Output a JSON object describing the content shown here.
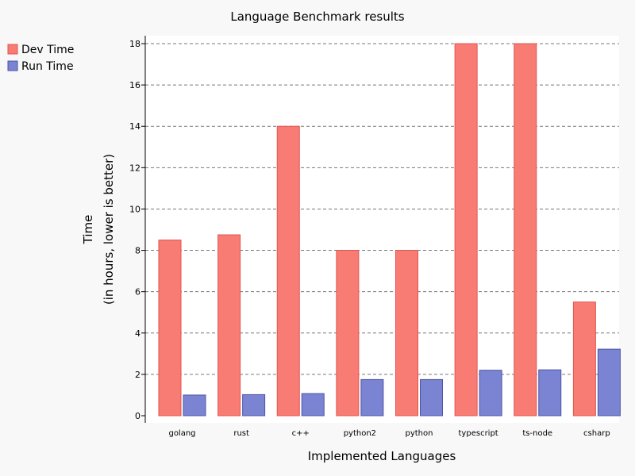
{
  "chart_data": {
    "type": "bar",
    "title": "Language Benchmark results",
    "xlabel": "Implemented Languages",
    "ylabel": [
      "Time",
      "(in hours, lower is better)"
    ],
    "categories": [
      "golang",
      "rust",
      "c++",
      "python2",
      "python",
      "typescript",
      "ts-node",
      "csharp"
    ],
    "series": [
      {
        "name": "Dev Time",
        "color": "#f87c73",
        "stroke": "#e05550",
        "values": [
          8.5,
          8.75,
          14.0,
          8.0,
          8.0,
          18.0,
          18.0,
          5.5
        ]
      },
      {
        "name": "Run Time",
        "color": "#7a84d2",
        "stroke": "#4d55a3",
        "values": [
          1.0,
          1.02,
          1.07,
          1.75,
          1.75,
          2.2,
          2.22,
          3.22
        ]
      }
    ],
    "ylim": [
      0,
      18
    ],
    "yticks": [
      "0",
      "2",
      "4",
      "6",
      "8",
      "10",
      "12",
      "14",
      "16",
      "18"
    ],
    "grid": true,
    "legend_position": "top-left"
  }
}
